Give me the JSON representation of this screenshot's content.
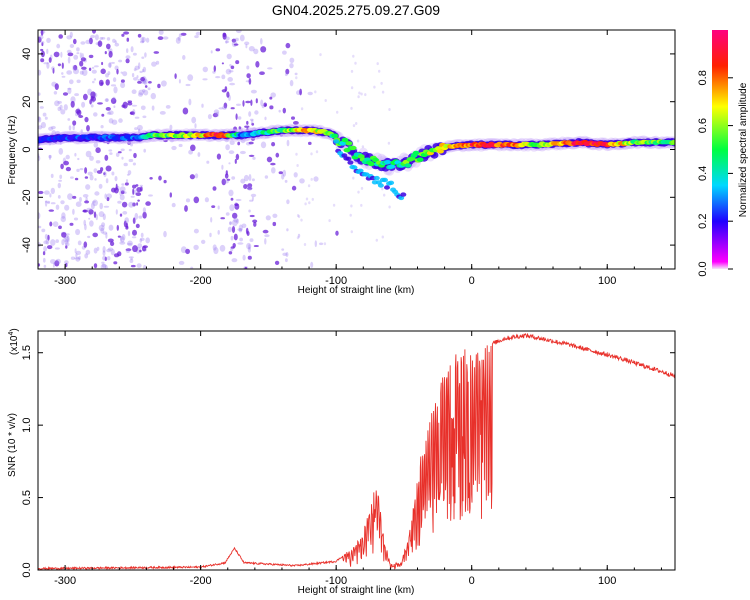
{
  "title": "GN04.2025.275.09.27.G09",
  "colors": {
    "snr_line": "#e8302a",
    "frame": "#000000",
    "noise_scatter": "#9c7cf0",
    "noise_scatter_dense": "#6a1fd8"
  },
  "chart_data": [
    {
      "id": "spectrogram",
      "type": "heatmap",
      "xlabel": "Height of straight line (km)",
      "ylabel": "Frequency (Hz)",
      "xlim": [
        -320,
        150
      ],
      "ylim": [
        -50,
        50
      ],
      "xticks": [
        -300,
        -200,
        -100,
        0,
        100
      ],
      "xtick_labels": [
        "-300",
        "-200",
        "-100",
        "0",
        "100"
      ],
      "yticks": [
        -40,
        -20,
        0,
        20,
        40
      ],
      "ytick_labels": [
        "-40",
        "-20",
        "0",
        "20",
        "40"
      ],
      "colorbar": {
        "label": "Normalized spectral amplitude",
        "range": [
          0,
          1
        ],
        "ticks": [
          0.0,
          0.2,
          0.4,
          0.6,
          0.8
        ],
        "tick_labels": [
          "0.0",
          "0.2",
          "0.4",
          "0.6",
          "0.8"
        ],
        "colormap": [
          "#f4f4f4",
          "#ff00ff",
          "#0000ff",
          "#00ffff",
          "#00ff00",
          "#ffff00",
          "#ff0000",
          "#ff00ff"
        ]
      },
      "main_trace": [
        {
          "x": -320,
          "y": 4,
          "a": 0.25
        },
        {
          "x": -300,
          "y": 5,
          "a": 0.28
        },
        {
          "x": -270,
          "y": 5,
          "a": 0.28
        },
        {
          "x": -245,
          "y": 5,
          "a": 0.3
        },
        {
          "x": -235,
          "y": 6,
          "a": 0.55
        },
        {
          "x": -215,
          "y": 6,
          "a": 0.6
        },
        {
          "x": -200,
          "y": 6,
          "a": 0.7
        },
        {
          "x": -185,
          "y": 6,
          "a": 0.9
        },
        {
          "x": -170,
          "y": 6,
          "a": 0.35
        },
        {
          "x": -155,
          "y": 7,
          "a": 0.5
        },
        {
          "x": -140,
          "y": 8,
          "a": 0.55
        },
        {
          "x": -120,
          "y": 8,
          "a": 0.75
        },
        {
          "x": -105,
          "y": 7,
          "a": 0.55
        },
        {
          "x": -95,
          "y": 3,
          "a": 0.5
        },
        {
          "x": -85,
          "y": -2,
          "a": 0.55
        },
        {
          "x": -75,
          "y": -5,
          "a": 0.55
        },
        {
          "x": -60,
          "y": -7,
          "a": 0.5
        },
        {
          "x": -48,
          "y": -5,
          "a": 0.55
        },
        {
          "x": -35,
          "y": -2,
          "a": 0.6
        },
        {
          "x": -20,
          "y": 1,
          "a": 0.7
        },
        {
          "x": 0,
          "y": 2,
          "a": 0.85
        },
        {
          "x": 25,
          "y": 2,
          "a": 0.85
        },
        {
          "x": 50,
          "y": 2,
          "a": 0.6
        },
        {
          "x": 80,
          "y": 3,
          "a": 0.9
        },
        {
          "x": 100,
          "y": 2,
          "a": 0.85
        },
        {
          "x": 120,
          "y": 3,
          "a": 0.6
        },
        {
          "x": 150,
          "y": 3,
          "a": 0.55
        }
      ],
      "lower_branch": [
        {
          "x": -100,
          "y": 2
        },
        {
          "x": -90,
          "y": -6
        },
        {
          "x": -80,
          "y": -11
        },
        {
          "x": -70,
          "y": -13
        },
        {
          "x": -60,
          "y": -15
        },
        {
          "x": -50,
          "y": -20
        }
      ]
    },
    {
      "id": "snr",
      "type": "line",
      "xlabel": "Height of straight line (km)",
      "ylabel": "SNR (10 * v/v)",
      "yscale_note": "(x10",
      "yscale_exp": "4",
      "yscale_close": ")",
      "xlim": [
        -320,
        150
      ],
      "ylim": [
        0,
        1.65
      ],
      "xticks": [
        -300,
        -200,
        -100,
        0,
        100
      ],
      "xtick_labels": [
        "-300",
        "-200",
        "-100",
        "0",
        "100"
      ],
      "yticks": [
        0.0,
        0.5,
        1.0,
        1.5
      ],
      "ytick_labels": [
        "0.0",
        "0.5",
        "1.0",
        "1.5"
      ],
      "envelope": [
        {
          "x": -320,
          "y": 0.01
        },
        {
          "x": -200,
          "y": 0.02
        },
        {
          "x": -182,
          "y": 0.05
        },
        {
          "x": -175,
          "y": 0.15
        },
        {
          "x": -168,
          "y": 0.05
        },
        {
          "x": -130,
          "y": 0.03
        },
        {
          "x": -100,
          "y": 0.06
        },
        {
          "x": -88,
          "y": 0.15
        },
        {
          "x": -80,
          "y": 0.25
        },
        {
          "x": -75,
          "y": 0.45
        },
        {
          "x": -70,
          "y": 0.6
        },
        {
          "x": -66,
          "y": 0.3
        },
        {
          "x": -60,
          "y": 0.03
        },
        {
          "x": -52,
          "y": 0.05
        },
        {
          "x": -45,
          "y": 0.3
        },
        {
          "x": -38,
          "y": 0.75
        },
        {
          "x": -28,
          "y": 1.15
        },
        {
          "x": -18,
          "y": 1.4
        },
        {
          "x": -8,
          "y": 1.52
        },
        {
          "x": 2,
          "y": 1.5
        },
        {
          "x": 12,
          "y": 1.55
        },
        {
          "x": 25,
          "y": 1.6
        },
        {
          "x": 40,
          "y": 1.62
        },
        {
          "x": 70,
          "y": 1.56
        },
        {
          "x": 110,
          "y": 1.46
        },
        {
          "x": 150,
          "y": 1.34
        }
      ]
    }
  ]
}
